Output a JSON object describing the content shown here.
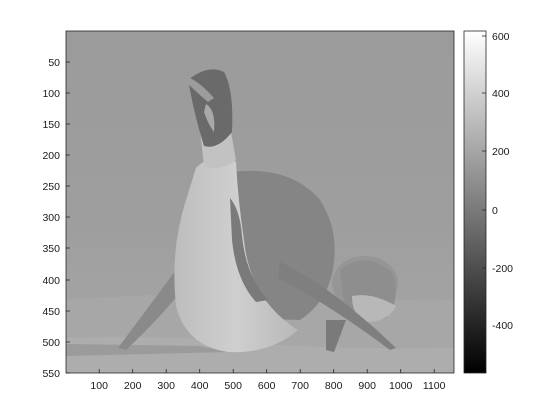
{
  "image": {
    "subject": "penguin",
    "x_ticks": [
      "100",
      "200",
      "300",
      "400",
      "500",
      "600",
      "700",
      "800",
      "900",
      "1000",
      "1100"
    ],
    "y_ticks": [
      "50",
      "100",
      "150",
      "200",
      "250",
      "300",
      "350",
      "400",
      "450",
      "500",
      "550"
    ],
    "x_range": [
      1,
      1160
    ],
    "y_range": [
      1,
      550
    ]
  },
  "colorbar": {
    "colormap": "gray",
    "range": [
      -570,
      620
    ],
    "ticks": [
      "600",
      "400",
      "200",
      "0",
      "-200",
      "-400"
    ]
  }
}
